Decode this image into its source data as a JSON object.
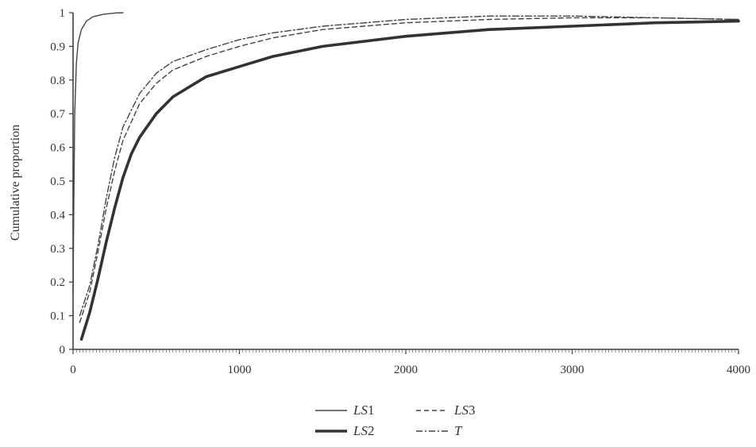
{
  "chart_data": {
    "type": "line",
    "title": "",
    "xlabel": "",
    "ylabel": "Cumulative proportion",
    "xlim": [
      0,
      4000
    ],
    "ylim": [
      0,
      1
    ],
    "x_ticks": [
      0,
      1000,
      2000,
      3000,
      4000
    ],
    "y_ticks": [
      0,
      0.1,
      0.2,
      0.3,
      0.4,
      0.5,
      0.6,
      0.7,
      0.8,
      0.9,
      1
    ],
    "x_tick_labels": [
      "0",
      "1000",
      "2000",
      "3000",
      "4000"
    ],
    "y_tick_labels": [
      "0",
      "0.1",
      "0.2",
      "0.3",
      "0.4",
      "0.5",
      "0.6",
      "0.7",
      "0.8",
      "0.9",
      "1"
    ],
    "grid": false,
    "legend_position": "bottom",
    "series": [
      {
        "name_prefix": "LS",
        "name_suffix": "1",
        "style": "solid-thin",
        "color": "#444444",
        "points": [
          [
            0,
            0.16
          ],
          [
            5,
            0.45
          ],
          [
            10,
            0.7
          ],
          [
            20,
            0.85
          ],
          [
            30,
            0.91
          ],
          [
            50,
            0.95
          ],
          [
            80,
            0.975
          ],
          [
            120,
            0.988
          ],
          [
            180,
            0.995
          ],
          [
            250,
            0.999
          ],
          [
            300,
            1.0
          ]
        ]
      },
      {
        "name_prefix": "LS",
        "name_suffix": "2",
        "style": "solid-thick",
        "color": "#333333",
        "points": [
          [
            50,
            0.03
          ],
          [
            100,
            0.11
          ],
          [
            150,
            0.21
          ],
          [
            200,
            0.32
          ],
          [
            250,
            0.42
          ],
          [
            300,
            0.51
          ],
          [
            350,
            0.58
          ],
          [
            400,
            0.63
          ],
          [
            500,
            0.7
          ],
          [
            600,
            0.75
          ],
          [
            800,
            0.81
          ],
          [
            1000,
            0.84
          ],
          [
            1200,
            0.87
          ],
          [
            1500,
            0.9
          ],
          [
            2000,
            0.93
          ],
          [
            2500,
            0.95
          ],
          [
            3000,
            0.96
          ],
          [
            3500,
            0.97
          ],
          [
            4000,
            0.975
          ]
        ]
      },
      {
        "name_prefix": "LS",
        "name_suffix": "3",
        "style": "dashed",
        "color": "#444444",
        "points": [
          [
            40,
            0.08
          ],
          [
            100,
            0.17
          ],
          [
            150,
            0.29
          ],
          [
            200,
            0.42
          ],
          [
            250,
            0.53
          ],
          [
            300,
            0.62
          ],
          [
            400,
            0.73
          ],
          [
            500,
            0.79
          ],
          [
            600,
            0.83
          ],
          [
            800,
            0.87
          ],
          [
            1000,
            0.9
          ],
          [
            1200,
            0.925
          ],
          [
            1500,
            0.95
          ],
          [
            2000,
            0.97
          ],
          [
            2500,
            0.98
          ],
          [
            3000,
            0.985
          ],
          [
            3500,
            0.985
          ],
          [
            4000,
            0.98
          ]
        ]
      },
      {
        "name_prefix": "",
        "name_suffix": "T",
        "style": "dash-dot",
        "color": "#444444",
        "points": [
          [
            40,
            0.1
          ],
          [
            100,
            0.19
          ],
          [
            150,
            0.31
          ],
          [
            200,
            0.45
          ],
          [
            250,
            0.57
          ],
          [
            300,
            0.66
          ],
          [
            400,
            0.76
          ],
          [
            500,
            0.82
          ],
          [
            600,
            0.855
          ],
          [
            800,
            0.89
          ],
          [
            1000,
            0.92
          ],
          [
            1200,
            0.94
          ],
          [
            1500,
            0.96
          ],
          [
            2000,
            0.98
          ],
          [
            2500,
            0.99
          ],
          [
            3000,
            0.99
          ],
          [
            3500,
            0.985
          ],
          [
            4000,
            0.98
          ]
        ]
      }
    ]
  }
}
